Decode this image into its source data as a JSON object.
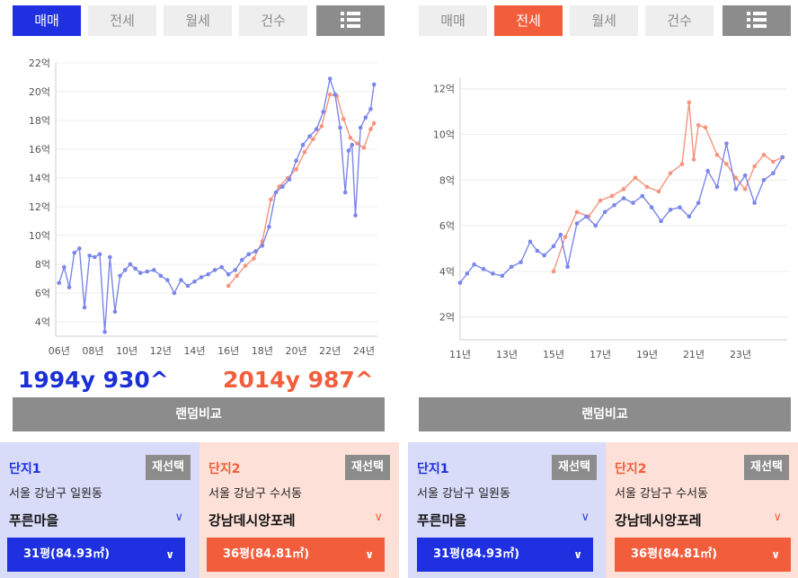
{
  "left": {
    "tabs": [
      {
        "label": "매매",
        "state": "active-blue"
      },
      {
        "label": "전세",
        "state": ""
      },
      {
        "label": "월세",
        "state": ""
      },
      {
        "label": "건수",
        "state": ""
      },
      {
        "label": "list-icon",
        "state": "list"
      }
    ],
    "compare_a": "1994y 930^",
    "compare_b": "2014y 987^",
    "random_label": "랜덤비교",
    "complex1": {
      "title": "단지1",
      "reselect": "재선택",
      "address": "서울 강남구 일원동",
      "name": "푸른마을",
      "size": "31평(84.93㎡)"
    },
    "complex2": {
      "title": "단지2",
      "reselect": "재선택",
      "address": "서울 강남구 수서동",
      "name": "강남데시앙포레",
      "size": "36평(84.81㎡)"
    }
  },
  "right": {
    "tabs": [
      {
        "label": "매매",
        "state": ""
      },
      {
        "label": "전세",
        "state": "active-red"
      },
      {
        "label": "월세",
        "state": ""
      },
      {
        "label": "건수",
        "state": ""
      },
      {
        "label": "list-icon",
        "state": "list"
      }
    ],
    "random_label": "랜덤비교",
    "complex1": {
      "title": "단지1",
      "reselect": "재선택",
      "address": "서울 강남구 일원동",
      "name": "푸른마을",
      "size": "31평(84.93㎡)"
    },
    "complex2": {
      "title": "단지2",
      "reselect": "재선택",
      "address": "서울 강남구 수서동",
      "name": "강남데시앙포레",
      "size": "36평(84.81㎡)"
    }
  },
  "colors": {
    "blue": "#7b86ea",
    "red": "#f5937c",
    "accent_blue": "#1e30e0",
    "accent_red": "#f25e3c"
  },
  "chart_data": [
    {
      "type": "line",
      "ylim": [
        3,
        22
      ],
      "xlim": [
        2005.8,
        2024.8
      ],
      "yticks": [
        4,
        6,
        8,
        10,
        12,
        14,
        16,
        18,
        20,
        22
      ],
      "ytick_labels": [
        "4억",
        "6억",
        "8억",
        "10억",
        "12억",
        "14억",
        "16억",
        "18억",
        "20억",
        "22억"
      ],
      "xticks": [
        2006,
        2008,
        2010,
        2012,
        2014,
        2016,
        2018,
        2020,
        2022,
        2024
      ],
      "xtick_labels": [
        "06년",
        "08년",
        "10년",
        "12년",
        "14년",
        "16년",
        "18년",
        "20년",
        "22년",
        "24년"
      ],
      "series": [
        {
          "color": "#7b86ea",
          "x": [
            2006.0,
            2006.3,
            2006.6,
            2006.9,
            2007.2,
            2007.5,
            2007.8,
            2008.1,
            2008.4,
            2008.7,
            2009.0,
            2009.3,
            2009.6,
            2009.9,
            2010.2,
            2010.5,
            2010.8,
            2011.2,
            2011.6,
            2012.0,
            2012.4,
            2012.8,
            2013.2,
            2013.6,
            2014.0,
            2014.4,
            2014.8,
            2015.2,
            2015.6,
            2016.0,
            2016.4,
            2016.8,
            2017.2,
            2017.6,
            2018.0,
            2018.4,
            2018.8,
            2019.2,
            2019.6,
            2020.0,
            2020.4,
            2020.8,
            2021.2,
            2021.6,
            2022.0,
            2022.3,
            2022.6,
            2022.9,
            2023.1,
            2023.3,
            2023.5,
            2023.8,
            2024.1,
            2024.4,
            2024.6
          ],
          "y": [
            6.7,
            7.8,
            6.4,
            8.8,
            9.1,
            5.0,
            8.6,
            8.5,
            8.7,
            3.3,
            8.5,
            4.7,
            7.2,
            7.6,
            8.0,
            7.7,
            7.4,
            7.5,
            7.6,
            7.2,
            6.9,
            6.0,
            6.9,
            6.5,
            6.8,
            7.1,
            7.3,
            7.6,
            7.8,
            7.3,
            7.6,
            8.3,
            8.7,
            8.9,
            9.3,
            10.6,
            13.0,
            13.4,
            13.9,
            15.2,
            16.3,
            16.9,
            17.4,
            18.6,
            20.9,
            19.8,
            17.5,
            13.0,
            15.9,
            16.3,
            11.4,
            17.5,
            18.2,
            18.8,
            20.5
          ]
        },
        {
          "color": "#f5937c",
          "x": [
            2016.0,
            2016.5,
            2017.0,
            2017.5,
            2018.0,
            2018.5,
            2019.0,
            2019.5,
            2020.0,
            2020.5,
            2021.0,
            2021.5,
            2022.0,
            2022.4,
            2022.8,
            2023.2,
            2023.6,
            2024.0,
            2024.4,
            2024.6
          ],
          "y": [
            6.5,
            7.2,
            7.9,
            8.4,
            9.6,
            12.5,
            13.4,
            14.0,
            14.6,
            15.8,
            16.7,
            17.6,
            19.8,
            19.7,
            18.1,
            16.8,
            16.4,
            16.1,
            17.4,
            17.8
          ]
        }
      ]
    },
    {
      "type": "line",
      "ylim": [
        1,
        12.5
      ],
      "xlim": [
        2011,
        2025
      ],
      "yticks": [
        2,
        4,
        6,
        8,
        10,
        12
      ],
      "ytick_labels": [
        "2억",
        "4억",
        "6억",
        "8억",
        "10억",
        "12억"
      ],
      "xticks": [
        2011,
        2013,
        2015,
        2017,
        2019,
        2021,
        2023
      ],
      "xtick_labels": [
        "11년",
        "13년",
        "15년",
        "17년",
        "19년",
        "21년",
        "23년"
      ],
      "series": [
        {
          "color": "#7b86ea",
          "x": [
            2011.0,
            2011.3,
            2011.6,
            2012.0,
            2012.4,
            2012.8,
            2013.2,
            2013.6,
            2014.0,
            2014.3,
            2014.6,
            2015.0,
            2015.3,
            2015.6,
            2016.0,
            2016.4,
            2016.8,
            2017.2,
            2017.6,
            2018.0,
            2018.4,
            2018.8,
            2019.2,
            2019.6,
            2020.0,
            2020.4,
            2020.8,
            2021.2,
            2021.6,
            2022.0,
            2022.4,
            2022.8,
            2023.2,
            2023.6,
            2024.0,
            2024.4,
            2024.8
          ],
          "y": [
            3.5,
            3.9,
            4.3,
            4.1,
            3.9,
            3.8,
            4.2,
            4.4,
            5.3,
            4.9,
            4.7,
            5.1,
            5.6,
            4.2,
            6.1,
            6.4,
            6.0,
            6.6,
            6.9,
            7.2,
            7.0,
            7.3,
            6.8,
            6.2,
            6.7,
            6.8,
            6.4,
            7.0,
            8.4,
            7.7,
            9.6,
            7.6,
            8.2,
            7.0,
            8.0,
            8.3,
            9.0
          ]
        },
        {
          "color": "#f5937c",
          "x": [
            2015.0,
            2015.5,
            2016.0,
            2016.5,
            2017.0,
            2017.5,
            2018.0,
            2018.5,
            2019.0,
            2019.5,
            2020.0,
            2020.5,
            2020.8,
            2021.0,
            2021.2,
            2021.5,
            2022.0,
            2022.4,
            2022.8,
            2023.2,
            2023.6,
            2024.0,
            2024.4,
            2024.8
          ],
          "y": [
            4.0,
            5.5,
            6.6,
            6.4,
            7.1,
            7.3,
            7.6,
            8.1,
            7.7,
            7.5,
            8.3,
            8.7,
            11.4,
            8.9,
            10.4,
            10.3,
            9.1,
            8.7,
            8.1,
            7.6,
            8.6,
            9.1,
            8.8,
            9.0
          ]
        }
      ]
    }
  ]
}
